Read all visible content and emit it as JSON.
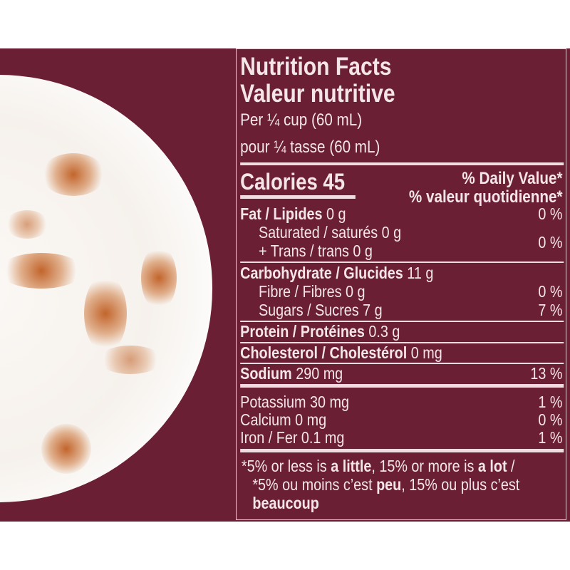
{
  "colors": {
    "background": "#6b1f35",
    "text": "#f4e6e8",
    "plate": "#ffffff",
    "stain": "#c2652c"
  },
  "label": {
    "title_en": "Nutrition Facts",
    "title_fr": "Valeur nutritive",
    "serving_en": "Per ¼ cup (60 mL)",
    "serving_fr": "pour ¼ tasse (60 mL)",
    "calories": "Calories 45",
    "dv_en": "% Daily Value*",
    "dv_fr": "% valeur quotidienne*",
    "rows": [
      {
        "name": "Fat / Lipides",
        "amount": " 0 g",
        "dv": "0 %"
      },
      {
        "name": "Saturated / saturés 0 g"
      },
      {
        "name": "+ Trans / trans 0 g",
        "dv": "0 %"
      },
      {
        "name": "Carbohydrate / Glucides",
        "amount": " 11 g"
      },
      {
        "name": "Fibre / Fibres 0 g",
        "dv": "0 %"
      },
      {
        "name": "Sugars / Sucres 7 g",
        "dv": "7 %"
      },
      {
        "name": "Protein / Protéines",
        "amount": " 0.3 g"
      },
      {
        "name": "Cholesterol / Cholestérol",
        "amount": " 0 mg"
      },
      {
        "name": "Sodium",
        "amount": " 290 mg",
        "dv": "13 %"
      },
      {
        "name": "Potassium 30 mg",
        "dv": "1 %"
      },
      {
        "name": "Calcium 0 mg",
        "dv": "0 %"
      },
      {
        "name": "Iron / Fer 0.1 mg",
        "dv": "1 %"
      }
    ],
    "footnote": {
      "p1": "*5% or less is ",
      "b1": "a little",
      "p2": ", 15% or more is ",
      "b2": "a lot",
      "p3": " / *5% ou moins c’est ",
      "b3": "peu",
      "p4": ", 15% ou plus c’est ",
      "b4": "beaucoup"
    }
  }
}
